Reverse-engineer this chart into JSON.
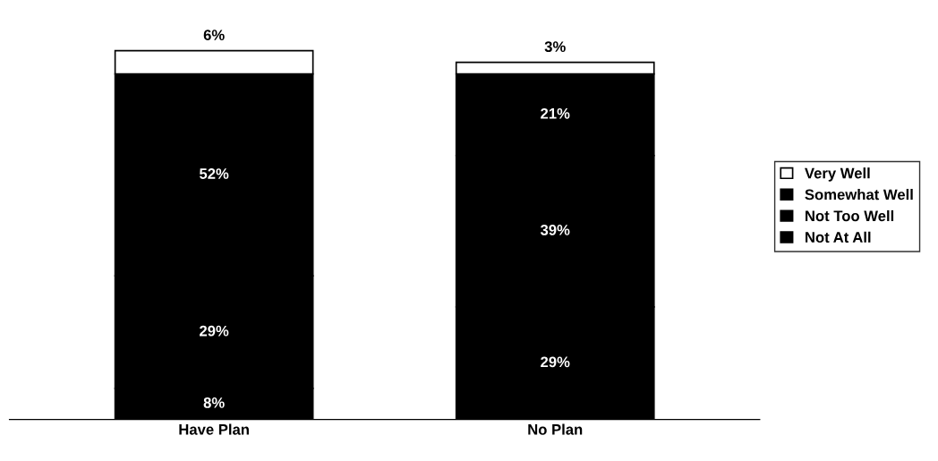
{
  "chart_data": {
    "type": "bar",
    "stacked": true,
    "categories": [
      "Have Plan",
      "No Plan"
    ],
    "series": [
      {
        "name": "Not At All",
        "color": "#000000",
        "values": [
          8,
          29
        ],
        "value_labels": [
          "8%",
          "29%"
        ]
      },
      {
        "name": "Not Too Well",
        "color": "#000000",
        "values": [
          29,
          39
        ],
        "value_labels": [
          "29%",
          "39%"
        ]
      },
      {
        "name": "Somewhat Well",
        "color": "#000000",
        "values": [
          52,
          21
        ],
        "value_labels": [
          "52%",
          "21%"
        ]
      },
      {
        "name": "Very Well",
        "color": "#ffffff",
        "values": [
          6,
          3
        ],
        "value_labels": [
          "6%",
          "3%"
        ]
      }
    ],
    "legend": "right",
    "grid": false
  }
}
